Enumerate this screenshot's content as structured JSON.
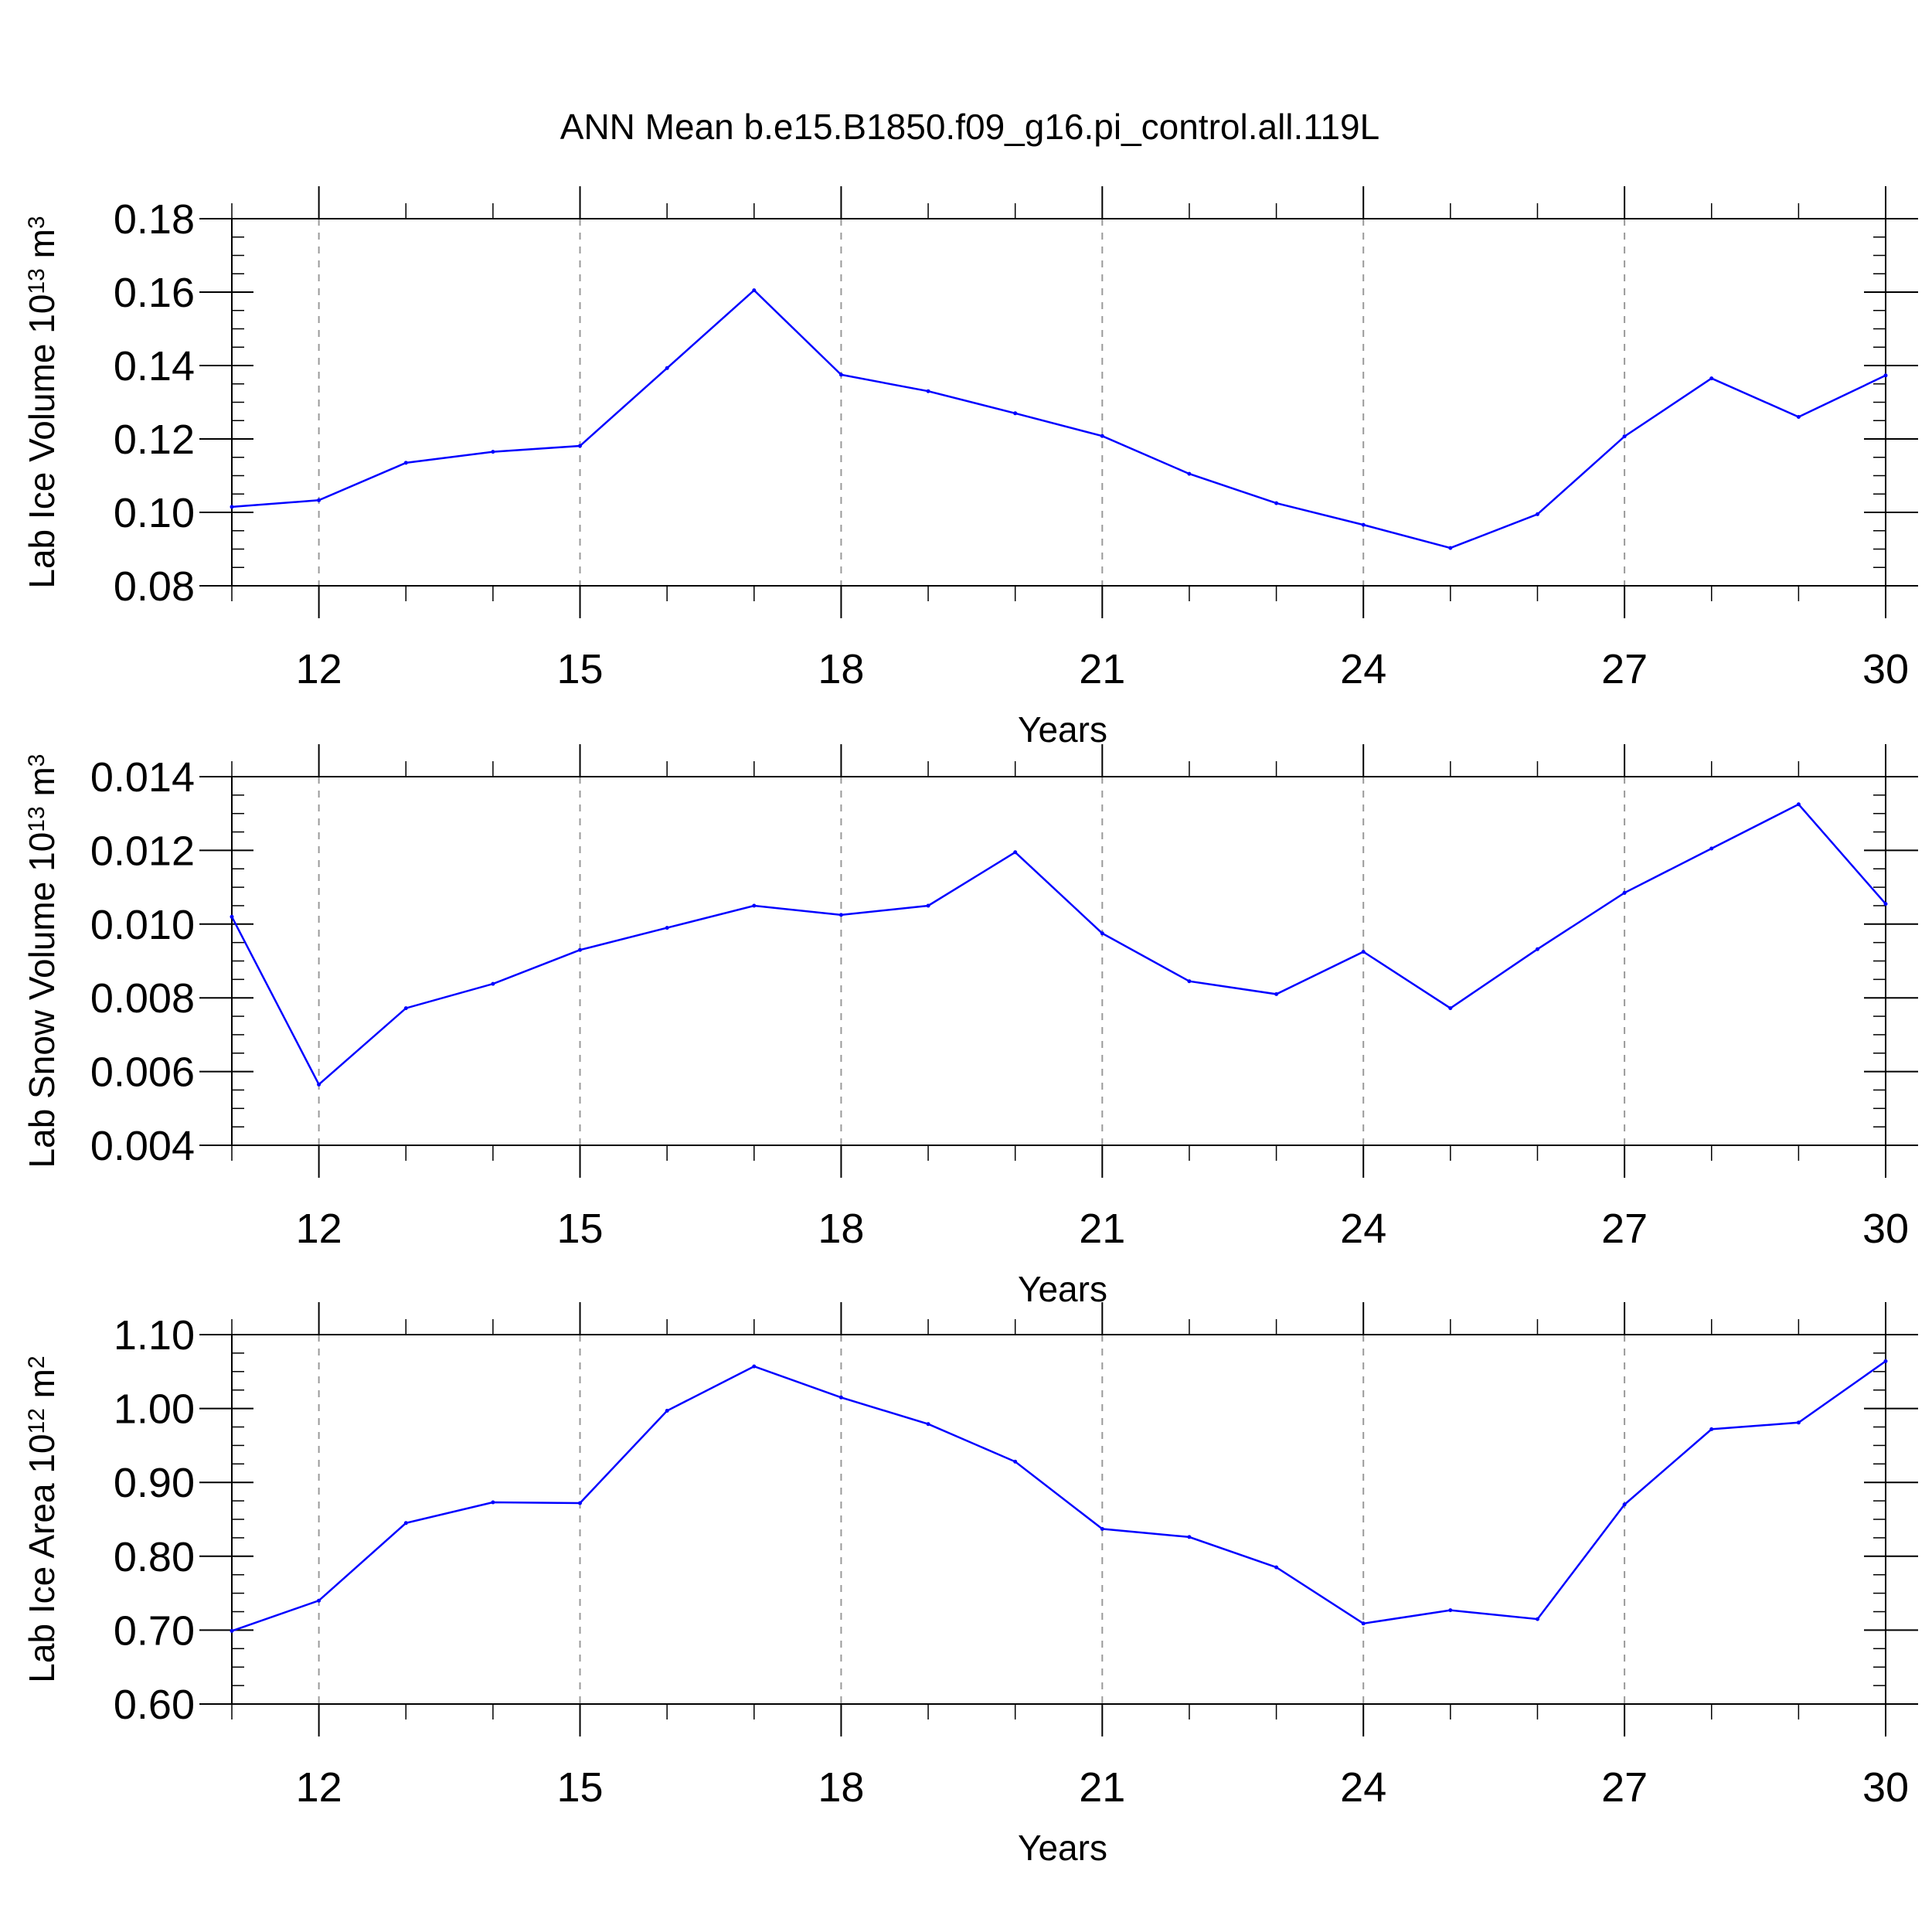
{
  "title": "ANN Mean b.e15.B1850.f09_g16.pi_control.all.119L",
  "colors": {
    "series": "#0000ff",
    "frame": "#000000",
    "grid": "#9a9a9a"
  },
  "chart_data": [
    {
      "type": "line",
      "xlabel": "Years",
      "ylabel_main": "Lab Ice Volume 10",
      "ylabel_exp": "13",
      "ylabel_unit": " m",
      "ylabel_unit_exp": "3",
      "xlim": [
        11,
        30
      ],
      "ylim": [
        0.08,
        0.18
      ],
      "y_minor_step": 0.005,
      "x_minor_step": 1,
      "x_ticks": [
        12,
        15,
        18,
        21,
        24,
        27,
        30
      ],
      "x_tick_labels": [
        "12",
        "15",
        "18",
        "21",
        "24",
        "27",
        "30"
      ],
      "y_ticks": [
        0.08,
        0.1,
        0.12,
        0.14,
        0.16,
        0.18
      ],
      "y_tick_labels": [
        "0.08",
        "0.10",
        "0.12",
        "0.14",
        "0.16",
        "0.18"
      ],
      "grid": "vertical-dashed",
      "x": [
        11,
        12,
        13,
        14,
        15,
        16,
        17,
        18,
        19,
        20,
        21,
        22,
        23,
        24,
        25,
        26,
        27,
        28,
        29,
        30
      ],
      "values": [
        0.1015,
        0.1033,
        0.1135,
        0.1165,
        0.1181,
        0.1393,
        0.1605,
        0.1375,
        0.133,
        0.127,
        0.1208,
        0.1105,
        0.1025,
        0.0966,
        0.0903,
        0.0995,
        0.1207,
        0.1365,
        0.126,
        0.1373
      ]
    },
    {
      "type": "line",
      "xlabel": "Years",
      "ylabel_main": "Lab Snow Volume 10",
      "ylabel_exp": "13",
      "ylabel_unit": " m",
      "ylabel_unit_exp": "3",
      "xlim": [
        11,
        30
      ],
      "ylim": [
        0.004,
        0.014
      ],
      "y_minor_step": 0.0005,
      "x_minor_step": 1,
      "x_ticks": [
        12,
        15,
        18,
        21,
        24,
        27,
        30
      ],
      "x_tick_labels": [
        "12",
        "15",
        "18",
        "21",
        "24",
        "27",
        "30"
      ],
      "y_ticks": [
        0.004,
        0.006,
        0.008,
        0.01,
        0.012,
        0.014
      ],
      "y_tick_labels": [
        "0.004",
        "0.006",
        "0.008",
        "0.010",
        "0.012",
        "0.014"
      ],
      "grid": "vertical-dashed",
      "x": [
        11,
        12,
        13,
        14,
        15,
        16,
        17,
        18,
        19,
        20,
        21,
        22,
        23,
        24,
        25,
        26,
        27,
        28,
        29,
        30
      ],
      "values": [
        0.0102,
        0.00565,
        0.00772,
        0.00838,
        0.0093,
        0.0099,
        0.0105,
        0.01025,
        0.0105,
        0.01195,
        0.00975,
        0.00845,
        0.0081,
        0.00925,
        0.00772,
        0.00932,
        0.01085,
        0.01205,
        0.01325,
        0.01055
      ]
    },
    {
      "type": "line",
      "xlabel": "Years",
      "ylabel_main": "Lab Ice Area 10",
      "ylabel_exp": "12",
      "ylabel_unit": " m",
      "ylabel_unit_exp": "2",
      "xlim": [
        11,
        30
      ],
      "ylim": [
        0.6,
        1.1
      ],
      "y_minor_step": 0.025,
      "x_minor_step": 1,
      "x_ticks": [
        12,
        15,
        18,
        21,
        24,
        27,
        30
      ],
      "x_tick_labels": [
        "12",
        "15",
        "18",
        "21",
        "24",
        "27",
        "30"
      ],
      "y_ticks": [
        0.6,
        0.7,
        0.8,
        0.9,
        1.0,
        1.1
      ],
      "y_tick_labels": [
        "0.60",
        "0.70",
        "0.80",
        "0.90",
        "1.00",
        "1.10"
      ],
      "grid": "vertical-dashed",
      "x": [
        11,
        12,
        13,
        14,
        15,
        16,
        17,
        18,
        19,
        20,
        21,
        22,
        23,
        24,
        25,
        26,
        27,
        28,
        29,
        30
      ],
      "values": [
        0.699,
        0.74,
        0.845,
        0.873,
        0.872,
        0.997,
        1.057,
        1.015,
        0.979,
        0.928,
        0.837,
        0.826,
        0.785,
        0.709,
        0.727,
        0.715,
        0.87,
        0.972,
        0.981,
        1.064
      ]
    }
  ]
}
